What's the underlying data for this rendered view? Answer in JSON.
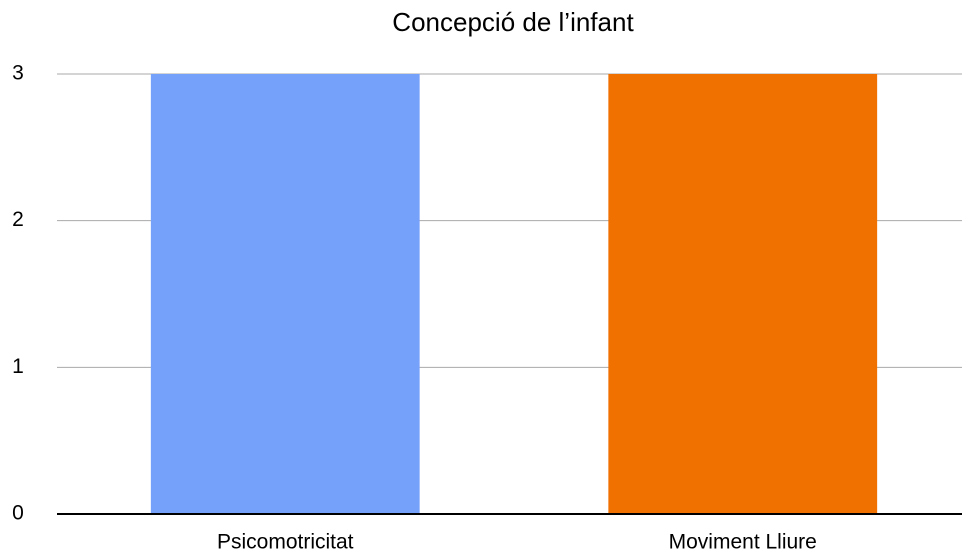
{
  "chart_data": {
    "type": "bar",
    "title": "Concepció de l’infant",
    "categories": [
      "Psicomotricitat",
      "Moviment Lliure"
    ],
    "values": [
      3,
      3
    ],
    "colors": [
      "#76a1fb",
      "#f07000"
    ],
    "ylim": [
      0,
      3
    ],
    "yticks": [
      0,
      1,
      2,
      3
    ],
    "grid": true
  }
}
